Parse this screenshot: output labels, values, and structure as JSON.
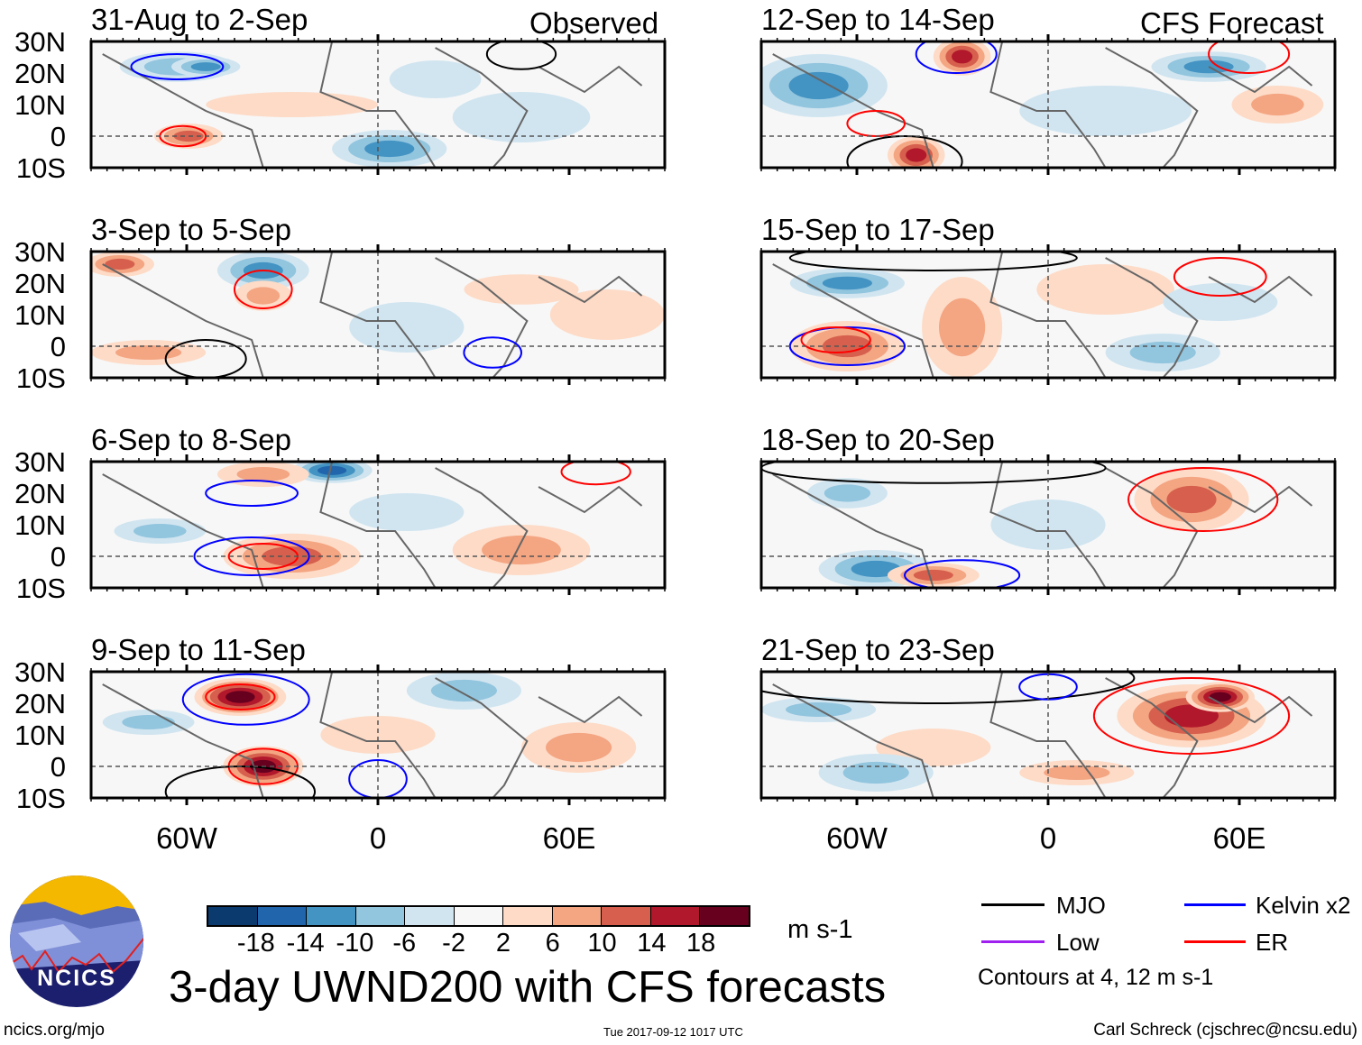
{
  "header": {
    "observed_label": "Observed",
    "forecast_label": "CFS Forecast"
  },
  "panels": [
    {
      "title": "31-Aug to 2-Sep",
      "type": "observed"
    },
    {
      "title": "3-Sep to 5-Sep",
      "type": "observed"
    },
    {
      "title": "6-Sep to 8-Sep",
      "type": "observed"
    },
    {
      "title": "9-Sep to 11-Sep",
      "type": "observed"
    },
    {
      "title": "12-Sep to 14-Sep",
      "type": "forecast"
    },
    {
      "title": "15-Sep to 17-Sep",
      "type": "forecast"
    },
    {
      "title": "18-Sep to 20-Sep",
      "type": "forecast"
    },
    {
      "title": "21-Sep to 23-Sep",
      "type": "forecast"
    }
  ],
  "lat_labels": [
    "30N",
    "20N",
    "10N",
    "0",
    "10S"
  ],
  "lon_labels": [
    "60W",
    "0",
    "60E"
  ],
  "colorbar": {
    "colors": [
      "#0b3a6e",
      "#2166ac",
      "#4393c3",
      "#92c5de",
      "#d1e5f0",
      "#f7f7f7",
      "#fddbc7",
      "#f4a582",
      "#d6604d",
      "#b2182b",
      "#67001f"
    ],
    "ticks": [
      "-18",
      "-14",
      "-10",
      "-6",
      "-2",
      "2",
      "6",
      "10",
      "14",
      "18"
    ],
    "units": "m s-1"
  },
  "legend": {
    "items": [
      {
        "label": "MJO",
        "color": "#000000"
      },
      {
        "label": "Kelvin x2",
        "color": "#0000ff"
      },
      {
        "label": "Low",
        "color": "#a020f0"
      },
      {
        "label": "ER",
        "color": "#ff0000"
      }
    ],
    "contour_note": "Contours at 4, 12 m s-1"
  },
  "title": "3-day UWND200 with CFS forecasts",
  "logo_text": "NCICS",
  "footer": {
    "left": "ncics.org/mjo",
    "center": "Tue 2017-09-12 1017 UTC",
    "right": "Carl Schreck (cjschrec@ncsu.edu)"
  },
  "chart_data": {
    "type": "heatmap",
    "variable": "200-hPa zonal wind anomaly (3-day mean)",
    "units": "m s-1",
    "lat_range": [
      "10S",
      "30N"
    ],
    "lon_range": [
      "90W",
      "90E"
    ],
    "color_levels": [
      -18,
      -14,
      -10,
      -6,
      -2,
      2,
      6,
      10,
      14,
      18
    ],
    "contour_levels": [
      4,
      12
    ]
  }
}
